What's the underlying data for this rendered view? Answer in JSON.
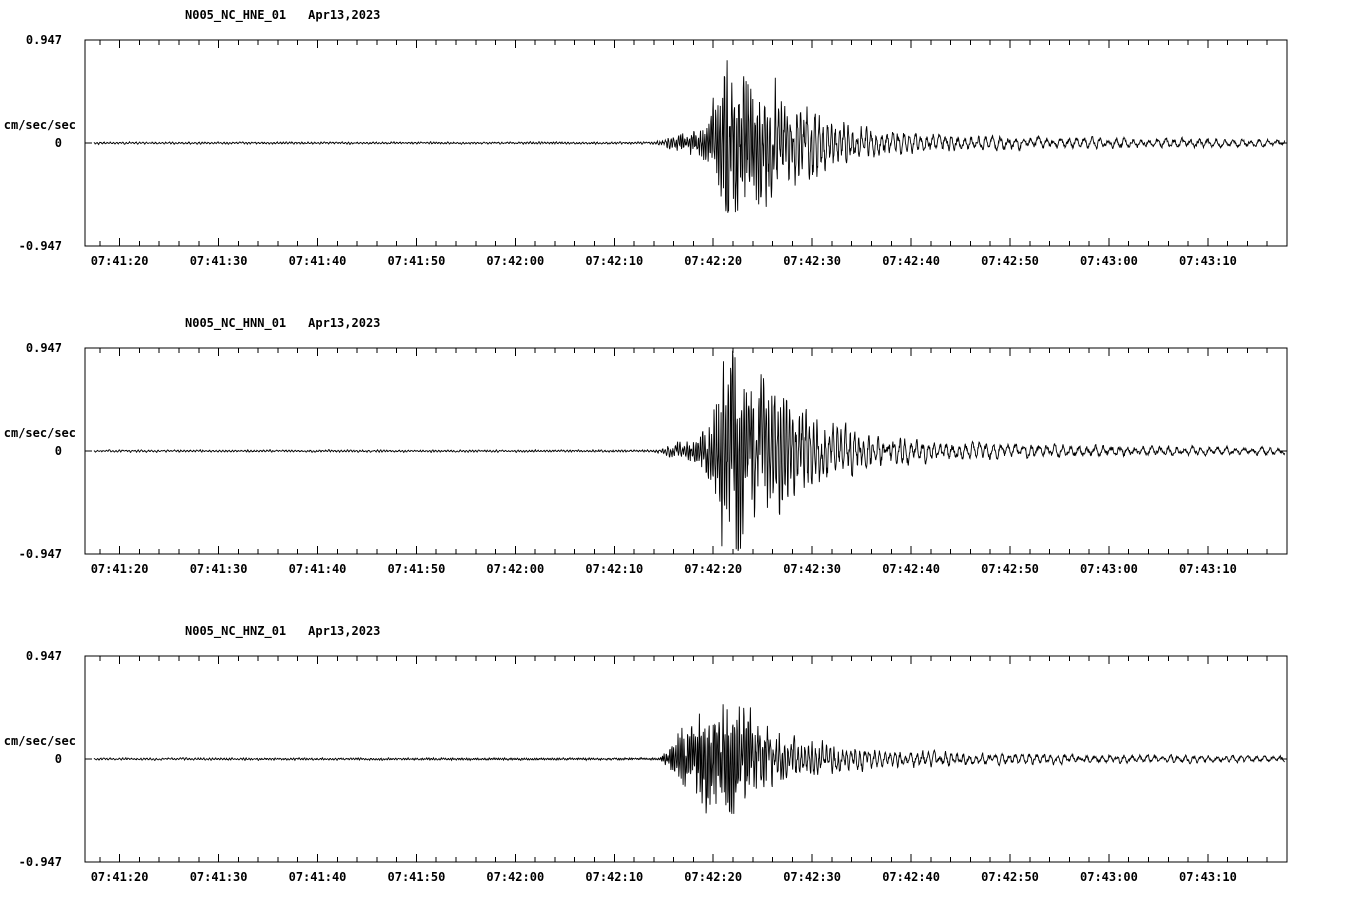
{
  "page": {
    "background": "#ffffff",
    "axis_color": "#000000",
    "trace_color": "#000000"
  },
  "chart_data": [
    {
      "type": "line",
      "station": "N005_NC_HNE_01",
      "date": "Apr13,2023",
      "ylabel": "cm/sec/sec",
      "ylim": [
        -0.947,
        0.947
      ],
      "y_tick_labels": [
        "0.947",
        "0",
        "-0.947"
      ],
      "x_tick_labels": [
        "07:41:20",
        "07:41:30",
        "07:41:40",
        "07:41:50",
        "07:42:00",
        "07:42:10",
        "07:42:20",
        "07:42:30",
        "07:42:40",
        "07:42:50",
        "07:43:00",
        "07:43:10"
      ],
      "x_start_offset_s": -3.5,
      "x_end_offset_s": 118,
      "x_major_interval_s": 10,
      "x_minor_interval_s": 2,
      "baseline": 0,
      "noise_amplitude": 0.008,
      "seed": 101,
      "event": {
        "onset": "07:42:16",
        "peak_time": "07:42:21",
        "peak_amplitude": 0.76,
        "min_amplitude": -0.64,
        "coda_end": "07:43:17"
      },
      "envelope": [
        [
          -3.5,
          0.008
        ],
        [
          54,
          0.008
        ],
        [
          56,
          0.05
        ],
        [
          58.5,
          0.09
        ],
        [
          59.5,
          0.16
        ],
        [
          60.5,
          0.42
        ],
        [
          61.5,
          0.72
        ],
        [
          63,
          0.6
        ],
        [
          65,
          0.45
        ],
        [
          68,
          0.3
        ],
        [
          72,
          0.18
        ],
        [
          76,
          0.1
        ],
        [
          82,
          0.062
        ],
        [
          90,
          0.046
        ],
        [
          100,
          0.036
        ],
        [
          118,
          0.026
        ]
      ],
      "frequency_hz": [
        [
          -3.5,
          3
        ],
        [
          55,
          3.5
        ],
        [
          57,
          4.5
        ],
        [
          64,
          4.2
        ],
        [
          70,
          2.6
        ],
        [
          78,
          1.8
        ],
        [
          90,
          1.3
        ],
        [
          118,
          1.1
        ]
      ]
    },
    {
      "type": "line",
      "station": "N005_NC_HNN_01",
      "date": "Apr13,2023",
      "ylabel": "cm/sec/sec",
      "ylim": [
        -0.947,
        0.947
      ],
      "y_tick_labels": [
        "0.947",
        "0",
        "-0.947"
      ],
      "x_tick_labels": [
        "07:41:20",
        "07:41:30",
        "07:41:40",
        "07:41:50",
        "07:42:00",
        "07:42:10",
        "07:42:20",
        "07:42:30",
        "07:42:40",
        "07:42:50",
        "07:43:00",
        "07:43:10"
      ],
      "x_start_offset_s": -3.5,
      "x_end_offset_s": 118,
      "x_major_interval_s": 10,
      "x_minor_interval_s": 2,
      "baseline": 0,
      "noise_amplitude": 0.008,
      "seed": 202,
      "event": {
        "onset": "07:42:16",
        "peak_time": "07:42:21",
        "peak_amplitude": 0.945,
        "min_amplitude": -0.93,
        "coda_end": "07:43:17"
      },
      "envelope": [
        [
          -3.5,
          0.008
        ],
        [
          54,
          0.008
        ],
        [
          56,
          0.05
        ],
        [
          58.5,
          0.1
        ],
        [
          59.5,
          0.18
        ],
        [
          60.5,
          0.48
        ],
        [
          61.5,
          0.85
        ],
        [
          63,
          0.7
        ],
        [
          65,
          0.5
        ],
        [
          68,
          0.33
        ],
        [
          72,
          0.2
        ],
        [
          76,
          0.12
        ],
        [
          82,
          0.07
        ],
        [
          90,
          0.05
        ],
        [
          100,
          0.04
        ],
        [
          118,
          0.026
        ]
      ],
      "frequency_hz": [
        [
          -3.5,
          3
        ],
        [
          55,
          3.5
        ],
        [
          57,
          4.5
        ],
        [
          64,
          4.2
        ],
        [
          70,
          2.6
        ],
        [
          78,
          1.8
        ],
        [
          90,
          1.3
        ],
        [
          118,
          1.1
        ]
      ]
    },
    {
      "type": "line",
      "station": "N005_NC_HNZ_01",
      "date": "Apr13,2023",
      "ylabel": "cm/sec/sec",
      "ylim": [
        -0.947,
        0.947
      ],
      "y_tick_labels": [
        "0.947",
        "0",
        "-0.947"
      ],
      "x_tick_labels": [
        "07:41:20",
        "07:41:30",
        "07:41:40",
        "07:41:50",
        "07:42:00",
        "07:42:10",
        "07:42:20",
        "07:42:30",
        "07:42:40",
        "07:42:50",
        "07:43:00",
        "07:43:10"
      ],
      "x_start_offset_s": -3.5,
      "x_end_offset_s": 118,
      "x_major_interval_s": 10,
      "x_minor_interval_s": 2,
      "baseline": 0,
      "noise_amplitude": 0.008,
      "seed": 303,
      "event": {
        "onset": "07:42:16",
        "peak_time": "07:42:21",
        "peak_amplitude": 0.56,
        "min_amplitude": -0.5,
        "coda_end": "07:43:17"
      },
      "envelope": [
        [
          -3.5,
          0.008
        ],
        [
          54.5,
          0.008
        ],
        [
          55.5,
          0.06
        ],
        [
          56.5,
          0.2
        ],
        [
          58,
          0.3
        ],
        [
          60,
          0.42
        ],
        [
          61,
          0.5
        ],
        [
          62,
          0.42
        ],
        [
          64,
          0.3
        ],
        [
          66,
          0.2
        ],
        [
          68,
          0.15
        ],
        [
          72,
          0.1
        ],
        [
          76,
          0.07
        ],
        [
          82,
          0.052
        ],
        [
          90,
          0.04
        ],
        [
          100,
          0.032
        ],
        [
          118,
          0.022
        ]
      ],
      "frequency_hz": [
        [
          -3.5,
          3
        ],
        [
          55,
          5
        ],
        [
          62,
          5
        ],
        [
          68,
          3
        ],
        [
          76,
          2
        ],
        [
          90,
          1.4
        ],
        [
          118,
          1.2
        ]
      ]
    }
  ]
}
